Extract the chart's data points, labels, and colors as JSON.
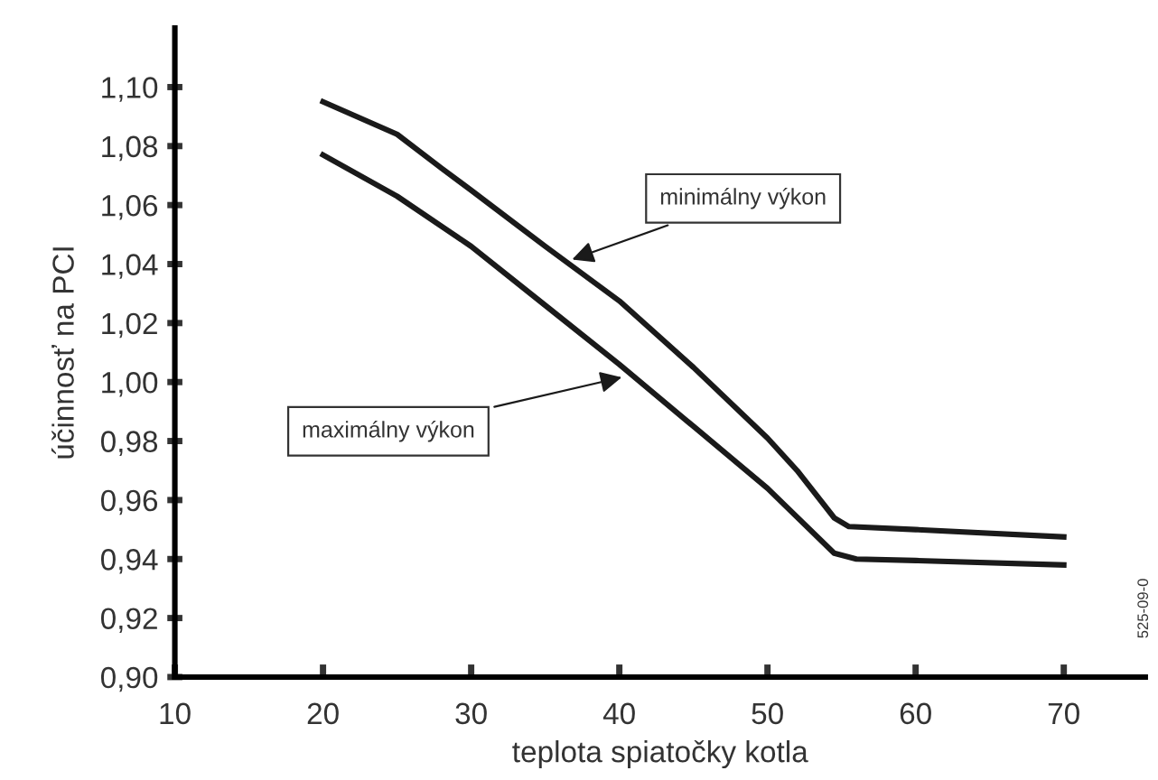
{
  "chart_data": {
    "type": "line",
    "xlabel": "teplota spiatočky kotla",
    "ylabel": "účinnosť na PCI",
    "xlim": [
      10,
      75.5
    ],
    "xticks": [
      10,
      20,
      30,
      40,
      50,
      60,
      70
    ],
    "ylim": [
      0.9,
      1.12
    ],
    "yticks": [
      {
        "value": 0.9,
        "label": "0,90"
      },
      {
        "value": 0.92,
        "label": "0,92"
      },
      {
        "value": 0.94,
        "label": "0,94"
      },
      {
        "value": 0.96,
        "label": "0,96"
      },
      {
        "value": 0.98,
        "label": "0,98"
      },
      {
        "value": 1.0,
        "label": "1,00"
      },
      {
        "value": 1.02,
        "label": "1,02"
      },
      {
        "value": 1.04,
        "label": "1,04"
      },
      {
        "value": 1.06,
        "label": "1,06"
      },
      {
        "value": 1.08,
        "label": "1,08"
      },
      {
        "value": 1.1,
        "label": "1,10"
      }
    ],
    "grid": false,
    "legend": false,
    "marker": "none",
    "line_style": "solid",
    "series": [
      {
        "color": "#1a1a1a",
        "x": [
          20,
          25,
          28,
          30,
          35,
          40,
          45,
          50,
          52,
          54.5,
          55.5,
          60,
          70
        ],
        "values": [
          1.095,
          1.084,
          1.0725,
          1.065,
          1.046,
          1.0275,
          1.005,
          0.981,
          0.97,
          0.954,
          0.951,
          0.95,
          0.9475
        ]
      },
      {
        "color": "#1a1a1a",
        "x": [
          20,
          25,
          30,
          35,
          40,
          45,
          50,
          54.5,
          56,
          60,
          70
        ],
        "values": [
          1.077,
          1.063,
          1.046,
          1.026,
          1.006,
          0.985,
          0.964,
          0.942,
          0.94,
          0.9395,
          0.938
        ]
      }
    ],
    "annotations": [
      {
        "text": "minimálny výkon",
        "x": 36.5,
        "y": 1.041
      },
      {
        "text": "maximálny výkon",
        "x": 40.5,
        "y": 1.002
      },
      "525-09-0"
    ]
  }
}
